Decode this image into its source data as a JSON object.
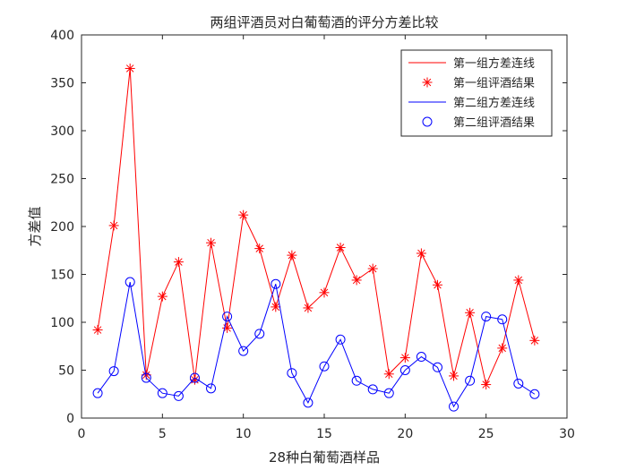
{
  "chart_data": {
    "type": "line",
    "title": "两组评酒员对白葡萄酒的评分方差比较",
    "xlabel": "28种白葡萄酒样品",
    "ylabel": "方差值",
    "xlim": [
      0,
      30
    ],
    "ylim": [
      0,
      400
    ],
    "xticks": [
      0,
      5,
      10,
      15,
      20,
      25,
      30
    ],
    "yticks": [
      0,
      50,
      100,
      150,
      200,
      250,
      300,
      350,
      400
    ],
    "grid": false,
    "legend_position": "top-right",
    "x": [
      1,
      2,
      3,
      4,
      5,
      6,
      7,
      8,
      9,
      10,
      11,
      12,
      13,
      14,
      15,
      16,
      17,
      18,
      19,
      20,
      21,
      22,
      23,
      24,
      25,
      26,
      27,
      28
    ],
    "series": [
      {
        "name_line": "第一组方差连线",
        "name_marker": "第一组评酒结果",
        "color": "#ff0000",
        "marker": "asterisk",
        "values": [
          92,
          201,
          365,
          45,
          127,
          163,
          40,
          183,
          94,
          212,
          177,
          116,
          170,
          115,
          131,
          178,
          144,
          156,
          46,
          63,
          172,
          139,
          44,
          110,
          35,
          73,
          144,
          81
        ]
      },
      {
        "name_line": "第二组方差连线",
        "name_marker": "第二组评酒结果",
        "color": "#0000ff",
        "marker": "circle",
        "values": [
          26,
          49,
          142,
          42,
          26,
          23,
          42,
          31,
          106,
          70,
          88,
          140,
          47,
          16,
          54,
          82,
          39,
          30,
          26,
          50,
          64,
          53,
          12,
          39,
          106,
          103,
          36,
          25
        ]
      }
    ]
  }
}
